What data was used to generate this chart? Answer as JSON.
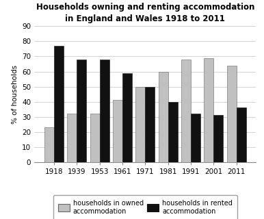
{
  "title": "Households owning and renting accommodation\nin England and Wales 1918 to 2011",
  "years": [
    "1918",
    "1939",
    "1953",
    "1961",
    "1971",
    "1981",
    "1991",
    "2001",
    "2011"
  ],
  "owned": [
    23,
    32,
    32,
    41,
    50,
    60,
    68,
    69,
    64
  ],
  "rented": [
    77,
    68,
    68,
    59,
    50,
    40,
    32,
    31,
    36
  ],
  "owned_color": "#c0c0c0",
  "rented_color": "#111111",
  "ylabel": "% of households",
  "ylim": [
    0,
    90
  ],
  "yticks": [
    0,
    10,
    20,
    30,
    40,
    50,
    60,
    70,
    80,
    90
  ],
  "bar_width": 0.42,
  "legend_owned": "households in owned\naccommodation",
  "legend_rented": "households in rented\naccommodation",
  "title_fontsize": 8.5,
  "axis_fontsize": 7.5,
  "legend_fontsize": 7,
  "background_color": "#ffffff",
  "grid_color": "#cccccc"
}
